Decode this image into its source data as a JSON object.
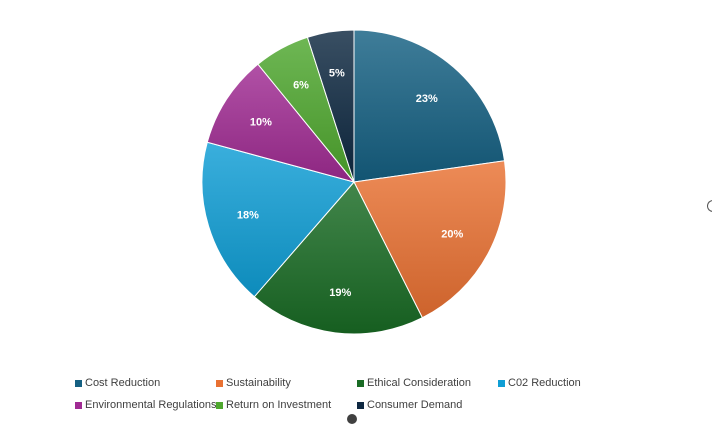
{
  "chart_data": {
    "type": "pie",
    "title": "",
    "categories": [
      "Cost Reduction",
      "Sustainability",
      "Ethical Consideration",
      "C02 Reduction",
      "Environmental Regulations",
      "Return on Investment",
      "Consumer Demand"
    ],
    "values": [
      23,
      20,
      19,
      18,
      10,
      6,
      5
    ],
    "labels": [
      "23%",
      "20%",
      "19%",
      "18%",
      "10%",
      "6%",
      "5%"
    ],
    "colors": [
      "#156082",
      "#E97132",
      "#196B24",
      "#0F9ED5",
      "#A02B93",
      "#4EA72E",
      "#0E2841"
    ],
    "legend_position": "bottom"
  }
}
